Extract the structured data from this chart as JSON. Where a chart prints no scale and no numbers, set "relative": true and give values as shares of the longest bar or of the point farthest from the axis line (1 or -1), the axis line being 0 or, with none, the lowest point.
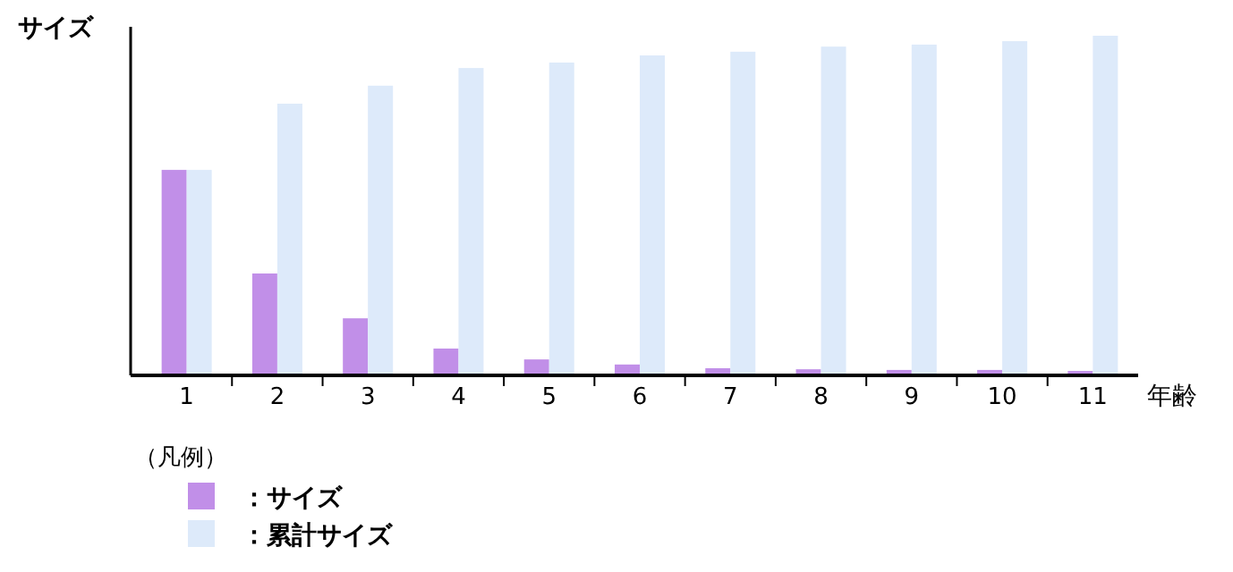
{
  "chart_data": {
    "type": "bar",
    "relative": true,
    "ylabel": "サイズ",
    "xlabel": "年齢",
    "legend_title": "（凡例）",
    "legend": "bottom left",
    "categories": [
      "1",
      "2",
      "3",
      "4",
      "5",
      "6",
      "7",
      "8",
      "9",
      "10",
      "11"
    ],
    "series": [
      {
        "name": "：サイズ",
        "color": "#c18fe8",
        "values": [
          0.605,
          0.3,
          0.168,
          0.079,
          0.047,
          0.032,
          0.021,
          0.018,
          0.016,
          0.016,
          0.013
        ]
      },
      {
        "name": "：累計サイズ",
        "color": "#ddeafa",
        "values": [
          0.605,
          0.8,
          0.853,
          0.905,
          0.921,
          0.942,
          0.953,
          0.968,
          0.974,
          0.984,
          1.0
        ]
      }
    ]
  }
}
